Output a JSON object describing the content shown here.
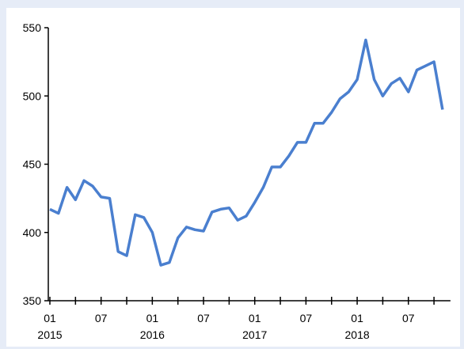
{
  "colors": {
    "background": "#e6ecf7",
    "plot_background": "#ffffff",
    "line": "#4a7fcf",
    "axis": "#000000"
  },
  "chart_data": {
    "type": "line",
    "title": "",
    "xlabel": "",
    "ylabel": "",
    "ylim": [
      350,
      550
    ],
    "yticks": [
      350,
      400,
      450,
      500,
      550
    ],
    "x_tick_labels": [
      {
        "month_index": 0,
        "label": "01",
        "year": "2015"
      },
      {
        "month_index": 6,
        "label": "07",
        "year": ""
      },
      {
        "month_index": 12,
        "label": "01",
        "year": "2016"
      },
      {
        "month_index": 18,
        "label": "07",
        "year": ""
      },
      {
        "month_index": 24,
        "label": "01",
        "year": "2017"
      },
      {
        "month_index": 30,
        "label": "07",
        "year": ""
      },
      {
        "month_index": 36,
        "label": "01",
        "year": "2018"
      },
      {
        "month_index": 42,
        "label": "07",
        "year": ""
      }
    ],
    "series": [
      {
        "values": [
          417,
          414,
          433,
          424,
          438,
          434,
          426,
          425,
          386,
          383,
          413,
          411,
          400,
          376,
          378,
          396,
          404,
          402,
          401,
          415,
          417,
          418,
          409,
          412,
          422,
          433,
          448,
          448,
          456,
          466,
          466,
          480,
          480,
          488,
          498,
          503,
          512,
          541,
          512,
          500,
          509,
          513,
          503,
          519,
          522,
          525,
          490
        ]
      }
    ]
  }
}
